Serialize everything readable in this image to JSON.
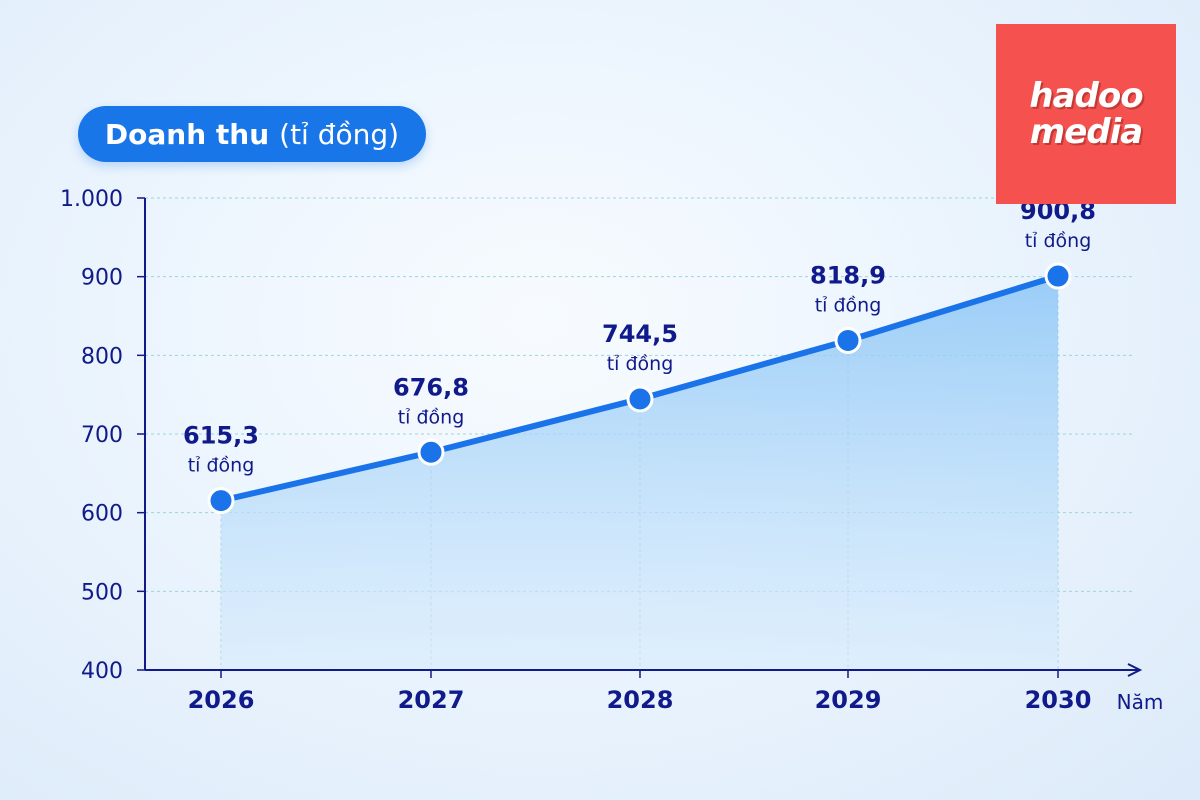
{
  "title": {
    "bold": "Doanh thu",
    "unit": "(tỉ đồng)"
  },
  "logo": {
    "line1": "hadoo",
    "line2": "media"
  },
  "colors": {
    "accent": "#1976e8",
    "line": "#1a73e8",
    "area": "#a9d3f8",
    "text": "#101a8a",
    "grid": "#9fd3d9",
    "logo_bg": "#f5514e"
  },
  "chart_data": {
    "type": "area",
    "title": "Doanh thu (tỉ đồng)",
    "xlabel": "Năm",
    "ylabel": "",
    "categories": [
      "2026",
      "2027",
      "2028",
      "2029",
      "2030"
    ],
    "series": [
      {
        "values": [
          615.3,
          676.8,
          744.5,
          818.9,
          900.8
        ]
      }
    ],
    "data_labels": [
      "615,3",
      "676,8",
      "744,5",
      "818,9",
      "900,8"
    ],
    "data_label_unit": "tỉ đồng",
    "ylim": [
      400,
      1000
    ],
    "yticks": [
      400,
      500,
      600,
      700,
      800,
      900,
      1000
    ],
    "ytick_labels": [
      "400",
      "500",
      "600",
      "700",
      "800",
      "900",
      "1.000"
    ],
    "grid": true,
    "legend": "none"
  }
}
